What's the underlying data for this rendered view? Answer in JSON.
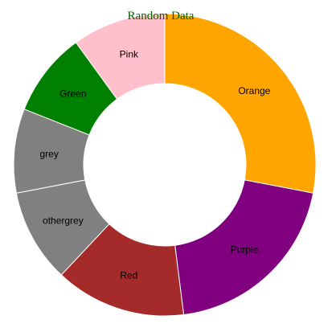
{
  "chart_data": {
    "type": "pie",
    "title": "Random Data",
    "title_color": "#006400",
    "donut": true,
    "categories": [
      "Orange",
      "Purple",
      "Red",
      "othergrey",
      "grey",
      "Green",
      "Pink"
    ],
    "values": [
      28,
      20,
      14,
      10,
      9,
      9,
      10
    ],
    "colors": [
      "#FFA500",
      "#800080",
      "#A52A2A",
      "#808080",
      "#808080",
      "#008000",
      "#FFC0CB"
    ],
    "start": "top",
    "direction": "clockwise",
    "legend": false
  }
}
